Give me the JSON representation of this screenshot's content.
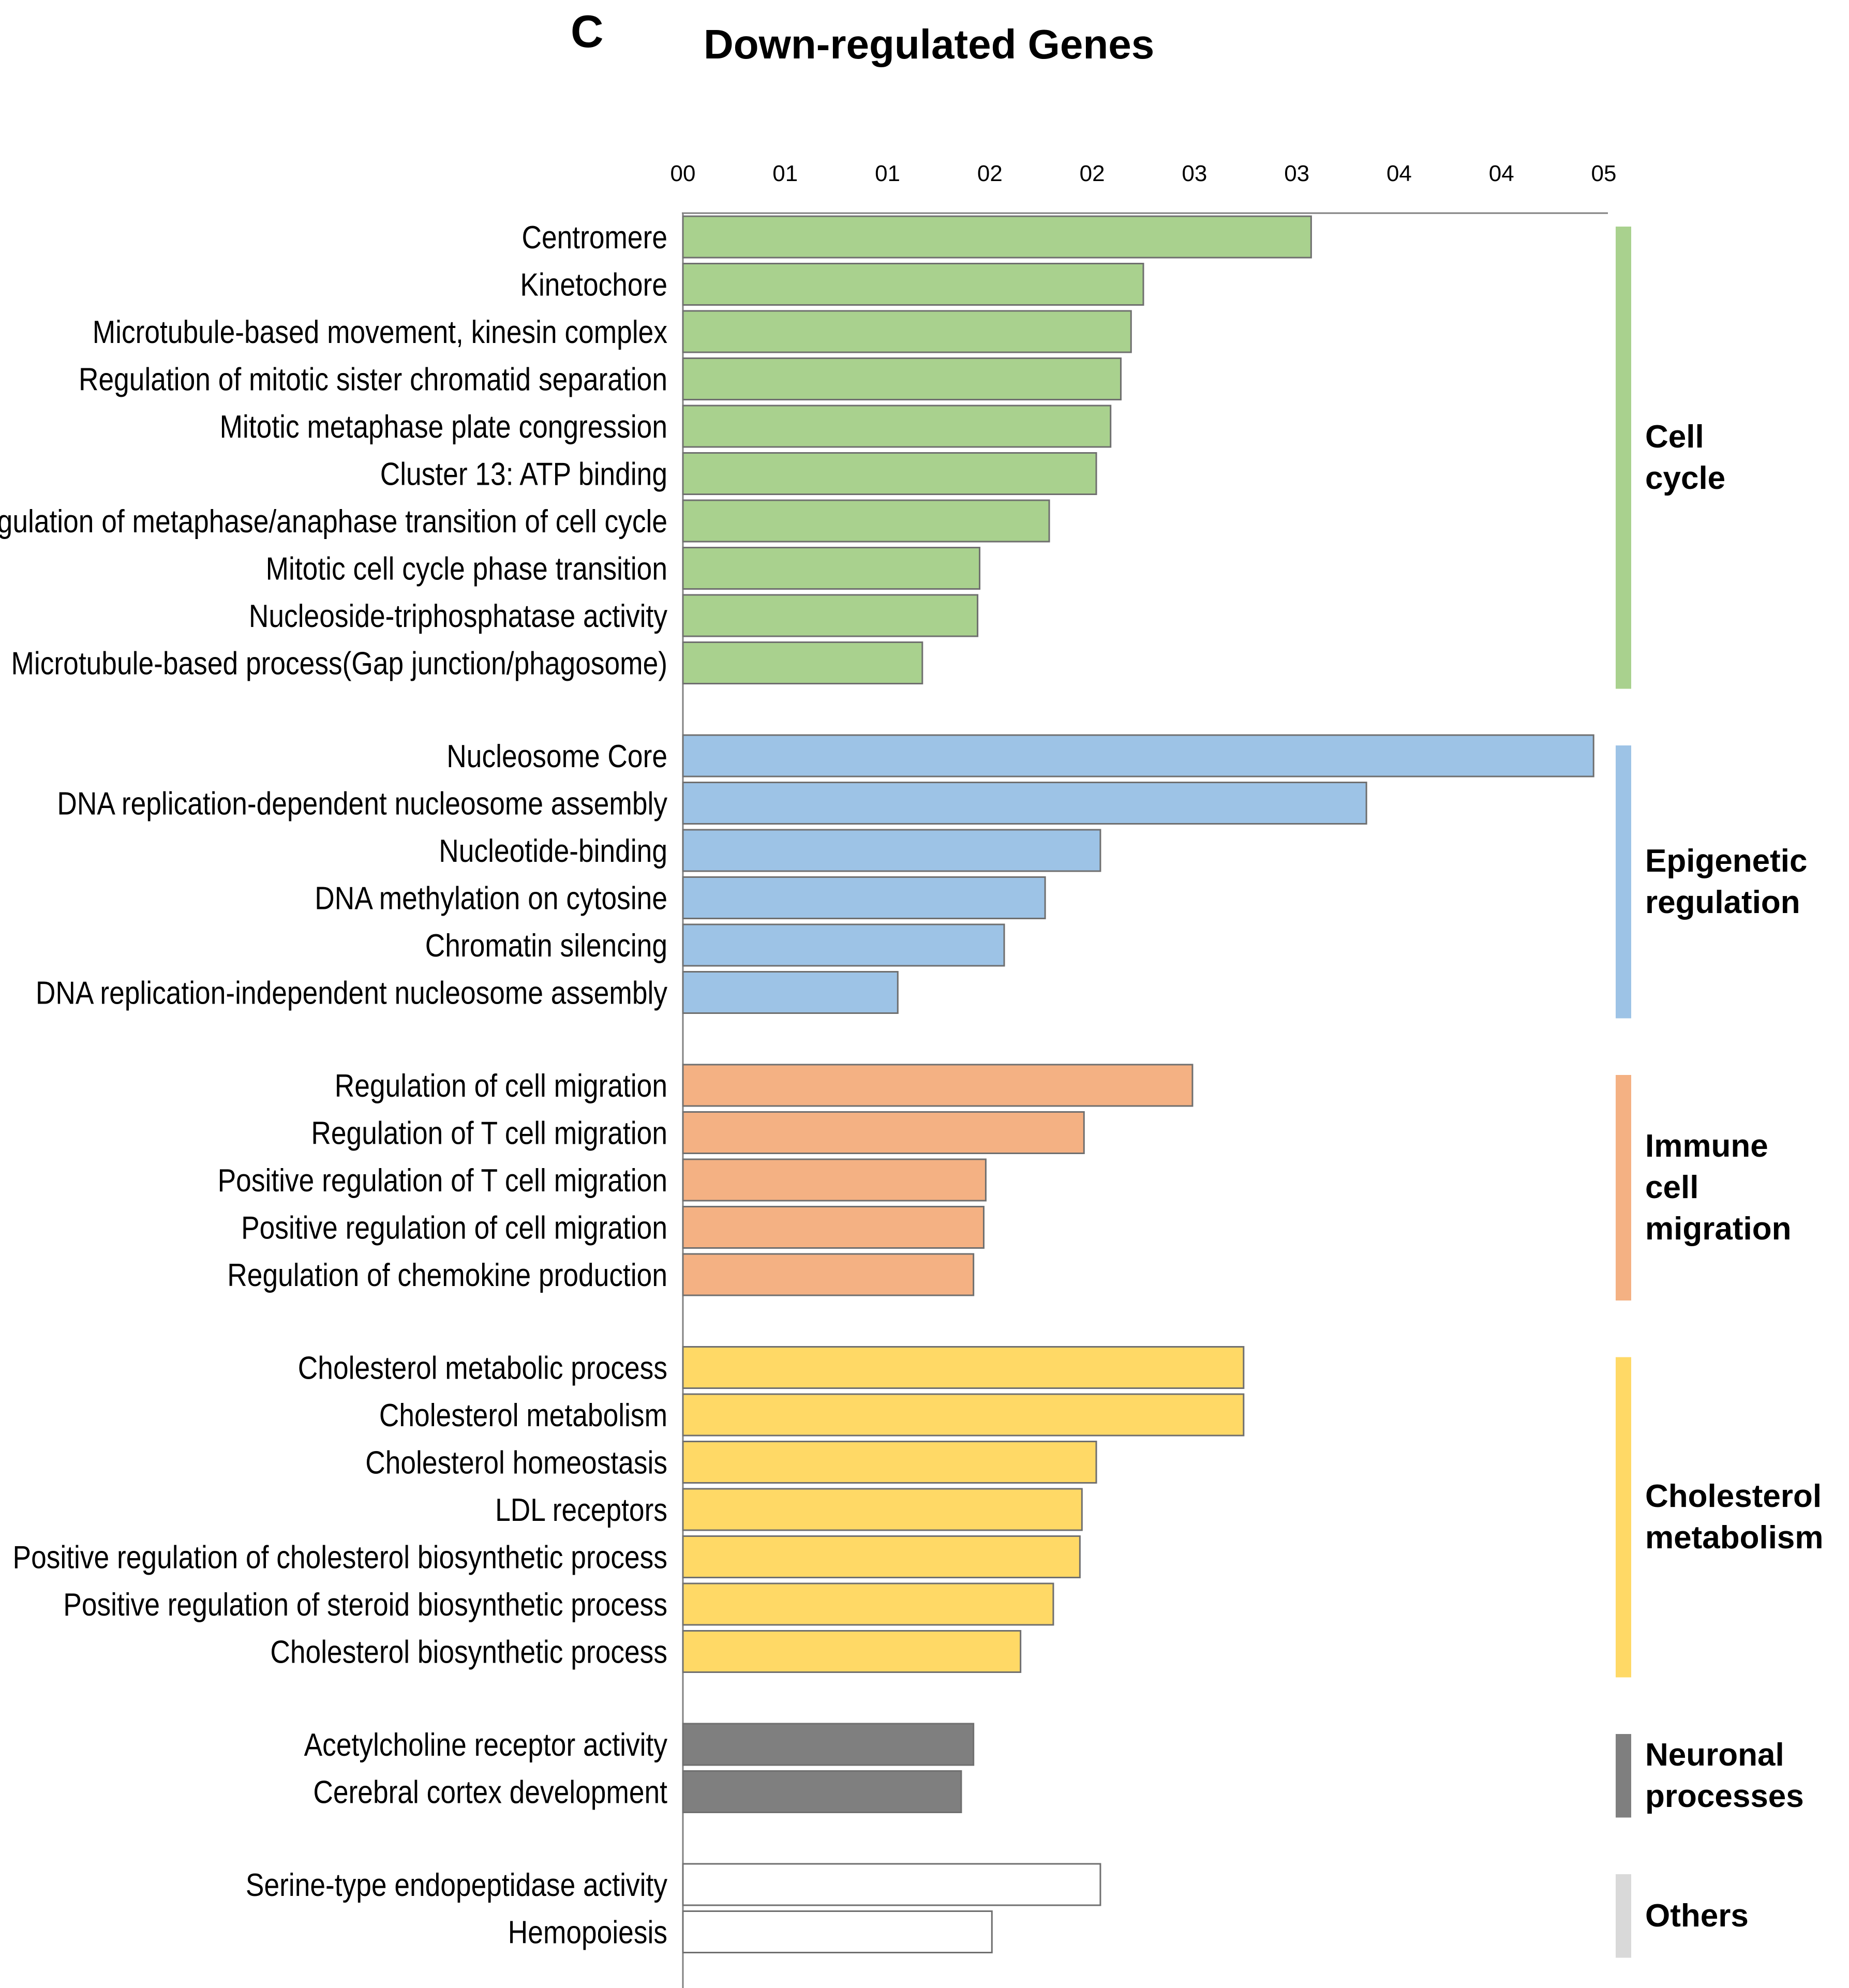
{
  "panel_letter": "C",
  "chart_data": {
    "type": "bar",
    "orientation": "horizontal",
    "title": "Down-regulated Genes",
    "xlabel": "",
    "ylabel": "",
    "xlim": [
      0,
      4.5
    ],
    "x_tick_labels": [
      "00",
      "01",
      "01",
      "02",
      "02",
      "03",
      "03",
      "04",
      "04",
      "05"
    ],
    "grid": false,
    "legend": "none",
    "groups": [
      {
        "name": "Cell cycle",
        "label_lines": [
          "Cell",
          "cycle"
        ],
        "color": "#a9d18e",
        "items": [
          {
            "label": "Centromere",
            "value": 3.07
          },
          {
            "label": "Kinetochore",
            "value": 2.25
          },
          {
            "label": "Microtubule-based movement, kinesin complex",
            "value": 2.19
          },
          {
            "label": "Regulation of mitotic sister chromatid separation",
            "value": 2.14
          },
          {
            "label": "Mitotic metaphase plate congression",
            "value": 2.09
          },
          {
            "label": "Cluster 13: ATP binding",
            "value": 2.02
          },
          {
            "label": "Regulation of metaphase/anaphase transition of cell cycle",
            "value": 1.79
          },
          {
            "label": "Mitotic cell cycle phase transition",
            "value": 1.45
          },
          {
            "label": "Nucleoside-triphosphatase activity",
            "value": 1.44
          },
          {
            "label": "Microtubule-based process(Gap junction/phagosome)",
            "value": 1.17
          }
        ]
      },
      {
        "name": "Epigenetic regulation",
        "label_lines": [
          "Epigenetic",
          "regulation"
        ],
        "color": "#9dc3e6",
        "items": [
          {
            "label": "Nucleosome Core",
            "value": 4.45
          },
          {
            "label": "DNA replication-dependent nucleosome assembly",
            "value": 3.34
          },
          {
            "label": "Nucleotide-binding",
            "value": 2.04
          },
          {
            "label": "DNA methylation on cytosine",
            "value": 1.77
          },
          {
            "label": "Chromatin silencing",
            "value": 1.57
          },
          {
            "label": "DNA replication-independent nucleosome assembly",
            "value": 1.05
          }
        ]
      },
      {
        "name": "Immune cell migration",
        "label_lines": [
          "Immune",
          "cell",
          "migration"
        ],
        "color": "#f4b183",
        "items": [
          {
            "label": "Regulation of cell migration",
            "value": 2.49
          },
          {
            "label": "Regulation of T cell migration",
            "value": 1.96
          },
          {
            "label": "Positive regulation of T cell migration",
            "value": 1.48
          },
          {
            "label": "Positive regulation of cell migration",
            "value": 1.47
          },
          {
            "label": "Regulation of chemokine production",
            "value": 1.42
          }
        ]
      },
      {
        "name": "Cholesterol metabolism",
        "label_lines": [
          "Cholesterol",
          "metabolism"
        ],
        "color": "#ffd966",
        "items": [
          {
            "label": "Cholesterol metabolic process",
            "value": 2.74
          },
          {
            "label": "Cholesterol metabolism",
            "value": 2.74
          },
          {
            "label": "Cholesterol homeostasis",
            "value": 2.02
          },
          {
            "label": "LDL receptors",
            "value": 1.95
          },
          {
            "label": "Positive regulation of cholesterol biosynthetic process",
            "value": 1.94
          },
          {
            "label": "Positive regulation of steroid biosynthetic process",
            "value": 1.81
          },
          {
            "label": "Cholesterol biosynthetic process",
            "value": 1.65
          }
        ]
      },
      {
        "name": "Neuronal processes",
        "label_lines": [
          "Neuronal",
          "processes"
        ],
        "color": "#7f7f7f",
        "items": [
          {
            "label": "Acetylcholine receptor activity",
            "value": 1.42
          },
          {
            "label": "Cerebral cortex development",
            "value": 1.36
          }
        ]
      },
      {
        "name": "Others",
        "label_lines": [
          "Others"
        ],
        "color": "#ffffff",
        "bracket_color": "#d9d9d9",
        "items": [
          {
            "label": "Serine-type endopeptidase activity",
            "value": 2.04
          },
          {
            "label": "Hemopoiesis",
            "value": 1.51
          }
        ]
      }
    ]
  }
}
